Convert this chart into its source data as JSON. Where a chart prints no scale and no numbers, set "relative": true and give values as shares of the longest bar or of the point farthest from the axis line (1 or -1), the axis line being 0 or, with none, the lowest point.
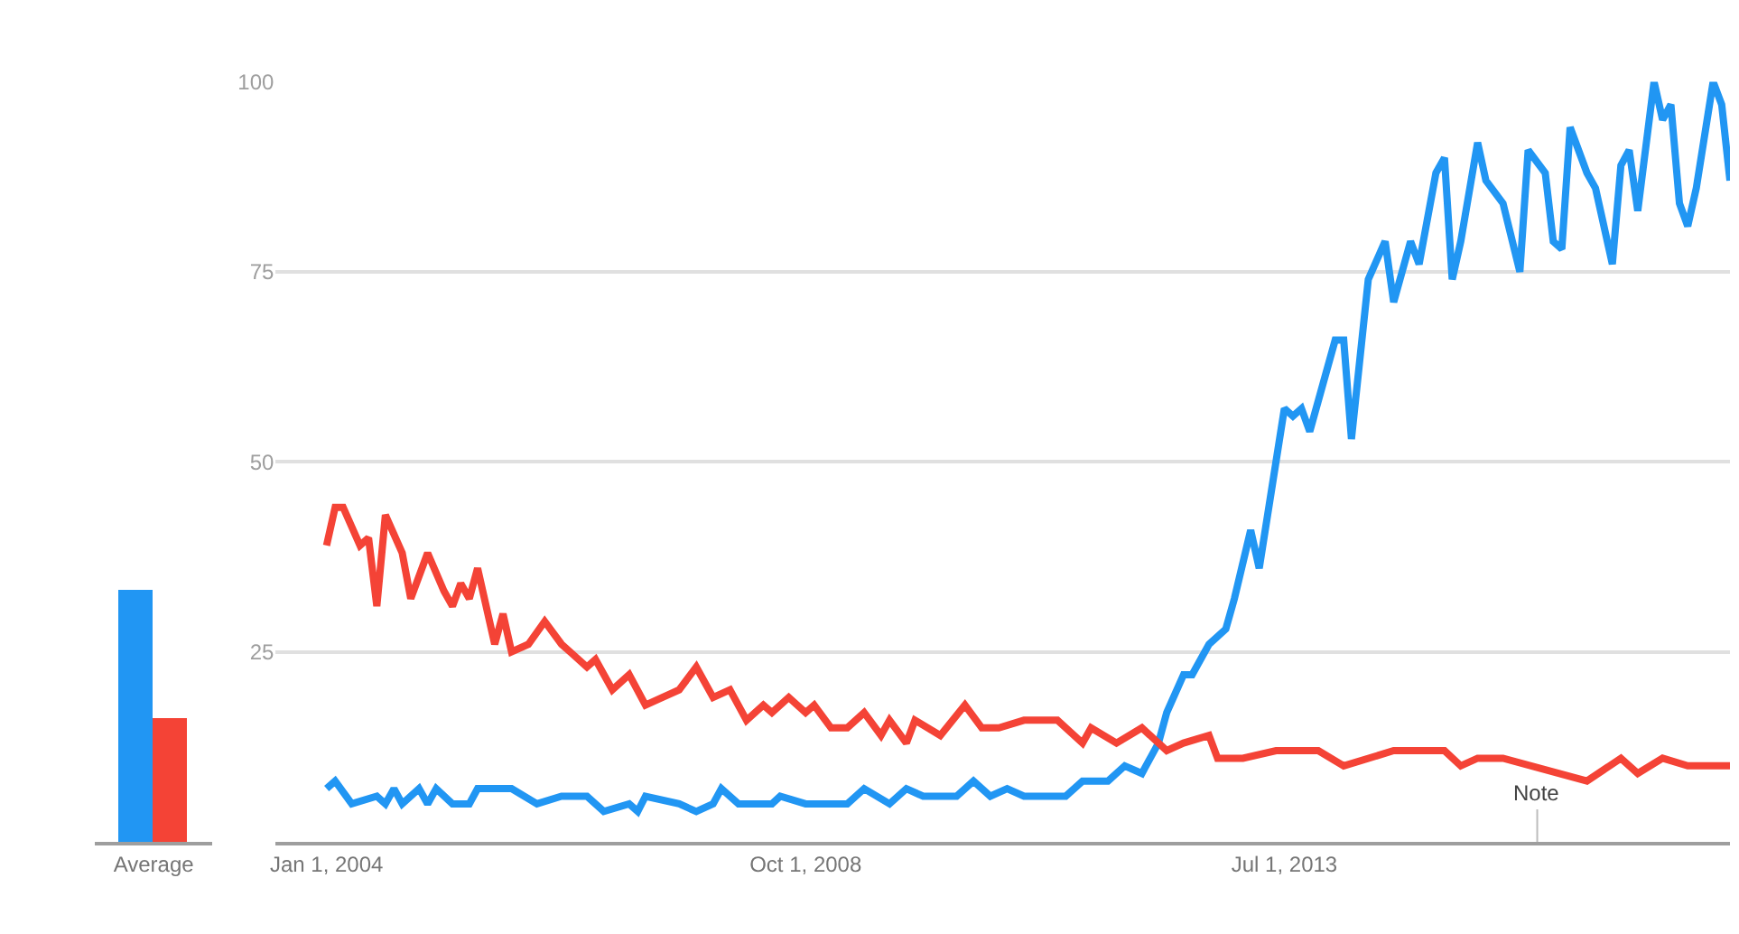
{
  "chart_data": [
    {
      "type": "bar",
      "relative": true,
      "categories": [
        "Average"
      ],
      "series": [
        {
          "color": "#2196f3",
          "values": [
            1
          ]
        },
        {
          "color": "#f44336",
          "values": [
            0.49
          ]
        }
      ],
      "grid": false
    },
    {
      "type": "line",
      "xlim": [
        "2003-07",
        "2017-12"
      ],
      "ylim": [
        0,
        100
      ],
      "xticks": [
        {
          "value": "2004-01-01",
          "label": "Jan 1, 2004"
        },
        {
          "value": "2008-10-01",
          "label": "Oct 1, 2008"
        },
        {
          "value": "2013-07-01",
          "label": "Jul 1, 2013"
        }
      ],
      "yticks": [
        25,
        50,
        75,
        100
      ],
      "grid": "y",
      "marker": "none",
      "line_style": "solid",
      "annotations": [
        "Note"
      ],
      "series": [
        {
          "color": "#2196f3",
          "x": [
            "2004-01",
            "2004-02",
            "2004-04",
            "2004-07",
            "2004-08",
            "2004-09",
            "2004-10",
            "2004-12",
            "2005-01",
            "2005-02",
            "2005-04",
            "2005-06",
            "2005-07",
            "2005-09",
            "2005-11",
            "2006-02",
            "2006-05",
            "2006-08",
            "2006-10",
            "2007-01",
            "2007-02",
            "2007-03",
            "2007-07",
            "2007-09",
            "2007-11",
            "2007-12",
            "2008-02",
            "2008-06",
            "2008-07",
            "2008-10",
            "2009-01",
            "2009-03",
            "2009-05",
            "2009-08",
            "2009-10",
            "2009-12",
            "2010-04",
            "2010-06",
            "2010-08",
            "2010-10",
            "2010-12",
            "2011-01",
            "2011-05",
            "2011-07",
            "2011-10",
            "2011-12",
            "2012-02",
            "2012-04",
            "2012-05",
            "2012-07",
            "2012-08",
            "2012-10",
            "2012-12",
            "2013-01",
            "2013-03",
            "2013-04",
            "2013-07",
            "2013-08",
            "2013-09",
            "2013-10",
            "2014-01",
            "2014-02",
            "2014-03",
            "2014-05",
            "2014-07",
            "2014-08",
            "2014-10",
            "2014-11",
            "2015-01",
            "2015-02",
            "2015-03",
            "2015-04",
            "2015-06",
            "2015-07",
            "2015-09",
            "2015-11",
            "2015-12",
            "2016-02",
            "2016-03",
            "2016-04",
            "2016-05",
            "2016-07",
            "2016-08",
            "2016-10",
            "2016-11",
            "2016-12",
            "2017-01",
            "2017-03",
            "2017-04",
            "2017-05",
            "2017-06",
            "2017-07",
            "2017-08",
            "2017-10",
            "2017-11",
            "2017-12"
          ],
          "values": [
            7,
            8,
            5,
            6,
            5,
            7,
            5,
            7,
            5,
            7,
            5,
            5,
            7,
            7,
            7,
            5,
            6,
            6,
            4,
            5,
            4,
            6,
            5,
            4,
            5,
            7,
            5,
            5,
            6,
            5,
            5,
            5,
            7,
            5,
            7,
            6,
            6,
            8,
            6,
            7,
            6,
            6,
            6,
            8,
            8,
            10,
            9,
            13,
            17,
            22,
            22,
            26,
            28,
            32,
            41,
            36,
            57,
            56,
            57,
            54,
            66,
            66,
            53,
            74,
            79,
            71,
            79,
            76,
            88,
            90,
            74,
            79,
            92,
            87,
            84,
            75,
            91,
            88,
            79,
            78,
            94,
            88,
            86,
            76,
            89,
            91,
            83,
            100,
            95,
            97,
            84,
            81,
            86,
            100,
            97,
            87
          ]
        },
        {
          "color": "#f44336",
          "x": [
            "2004-01",
            "2004-02",
            "2004-03",
            "2004-05",
            "2004-06",
            "2004-07",
            "2004-08",
            "2004-10",
            "2004-11",
            "2005-01",
            "2005-03",
            "2005-04",
            "2005-05",
            "2005-06",
            "2005-07",
            "2005-09",
            "2005-10",
            "2005-11",
            "2006-01",
            "2006-03",
            "2006-05",
            "2006-06",
            "2006-08",
            "2006-09",
            "2006-11",
            "2007-01",
            "2007-03",
            "2007-05",
            "2007-07",
            "2007-09",
            "2007-11",
            "2008-01",
            "2008-03",
            "2008-05",
            "2008-06",
            "2008-08",
            "2008-10",
            "2008-11",
            "2009-01",
            "2009-03",
            "2009-05",
            "2009-07",
            "2009-08",
            "2009-10",
            "2009-11",
            "2010-02",
            "2010-05",
            "2010-07",
            "2010-09",
            "2010-12",
            "2011-01",
            "2011-04",
            "2011-07",
            "2011-08",
            "2011-11",
            "2012-02",
            "2012-05",
            "2012-07",
            "2012-10",
            "2012-11",
            "2013-02",
            "2013-06",
            "2013-11",
            "2014-02",
            "2014-08",
            "2015-02",
            "2015-04",
            "2015-06",
            "2015-09",
            "2016-07",
            "2016-11",
            "2017-01",
            "2017-04",
            "2017-07",
            "2017-12"
          ],
          "values": [
            39,
            44,
            44,
            39,
            40,
            31,
            43,
            38,
            32,
            38,
            33,
            31,
            34,
            32,
            36,
            26,
            30,
            25,
            26,
            29,
            26,
            25,
            23,
            24,
            20,
            22,
            18,
            19,
            20,
            23,
            19,
            20,
            16,
            18,
            17,
            19,
            17,
            18,
            15,
            15,
            17,
            14,
            16,
            13,
            16,
            14,
            18,
            15,
            15,
            16,
            16,
            16,
            13,
            15,
            13,
            15,
            12,
            13,
            14,
            11,
            11,
            12,
            12,
            10,
            12,
            12,
            10,
            11,
            11,
            8,
            11,
            9,
            11,
            10,
            10
          ]
        }
      ]
    }
  ]
}
